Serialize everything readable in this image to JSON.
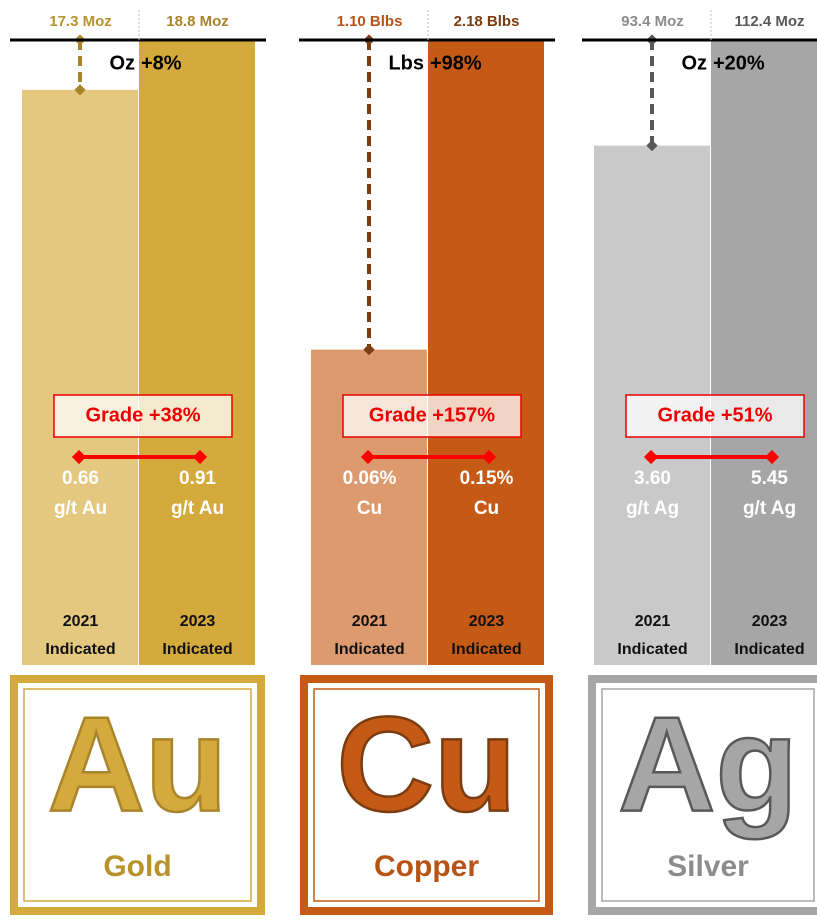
{
  "panels": [
    {
      "symbol": "Au",
      "name": "Gold",
      "change_unit": "Oz",
      "change": "+8%",
      "grade_change": "Grade +38%",
      "colors": [
        "#e4c880",
        "#d4aa3c"
      ],
      "accent": "#b8922c",
      "line": "#a8842a",
      "bars": [
        {
          "value": 17.3,
          "value_label": "17.3 Moz",
          "grade": "0.66",
          "grade_unit": "g/t Au",
          "year": "2021",
          "category": "Indicated"
        },
        {
          "value": 18.8,
          "value_label": "18.8 Moz",
          "grade": "0.91",
          "grade_unit": "g/t Au",
          "year": "2023",
          "category": "Indicated"
        }
      ]
    },
    {
      "symbol": "Cu",
      "name": "Copper",
      "change_unit": "Lbs",
      "change": "+98%",
      "grade_change": "Grade +157%",
      "colors": [
        "#dc9a6e",
        "#c45a15"
      ],
      "accent": "#b85316",
      "line": "#7a3c10",
      "bars": [
        {
          "value": 1.1,
          "value_label": "1.10 Blbs",
          "grade": "0.06%",
          "grade_unit": "Cu",
          "year": "2021",
          "category": "Indicated"
        },
        {
          "value": 2.18,
          "value_label": "2.18 Blbs",
          "grade": "0.15%",
          "grade_unit": "Cu",
          "year": "2023",
          "category": "Indicated"
        }
      ]
    },
    {
      "symbol": "Ag",
      "name": "Silver",
      "change_unit": "Oz",
      "change": "+20%",
      "grade_change": "Grade +51%",
      "colors": [
        "#c9c9c9",
        "#a6a6a6"
      ],
      "accent": "#8c8c8c",
      "line": "#595959",
      "bars": [
        {
          "value": 93.4,
          "value_label": "93.4 Moz",
          "grade": "3.60",
          "grade_unit": "g/t Ag",
          "year": "2021",
          "category": "Indicated"
        },
        {
          "value": 112.4,
          "value_label": "112.4 Moz",
          "grade": "5.45",
          "grade_unit": "g/t Ag",
          "year": "2023",
          "category": "Indicated"
        }
      ]
    }
  ]
}
